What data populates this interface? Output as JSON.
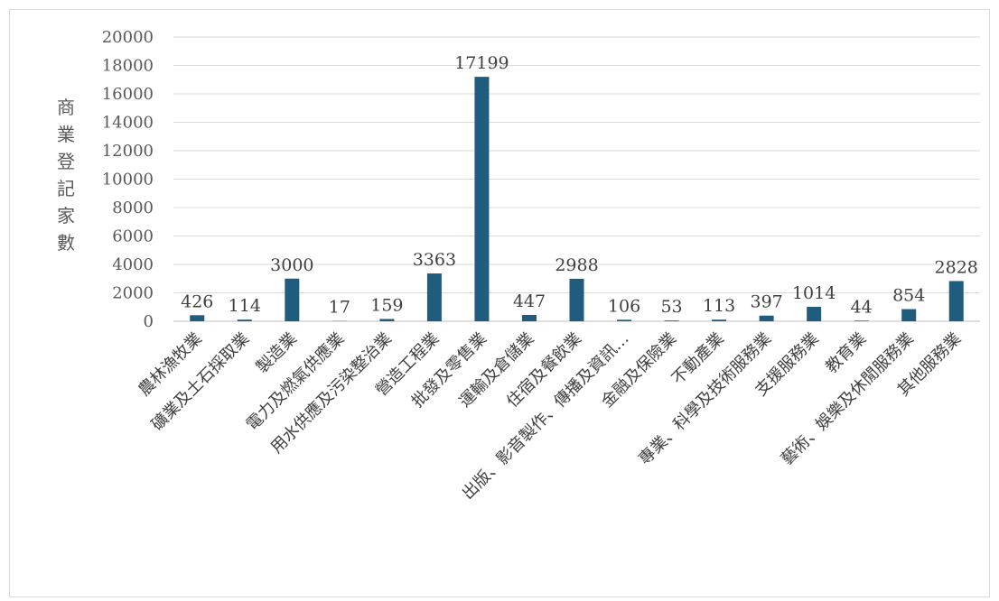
{
  "chart_data": {
    "type": "bar",
    "title": "",
    "xlabel": "",
    "ylabel": "商業登記家數",
    "ylim": [
      0,
      20000
    ],
    "yticks": [
      0,
      2000,
      4000,
      6000,
      8000,
      10000,
      12000,
      14000,
      16000,
      18000,
      20000
    ],
    "grid": true,
    "bar_color": "#1f5c7e",
    "categories": [
      "農林漁牧業",
      "礦業及土石採取業",
      "製造業",
      "電力及燃氣供應業",
      "用水供應及污染整治業",
      "營造工程業",
      "批發及零售業",
      "運輸及倉儲業",
      "住宿及餐飲業",
      "出版、影音製作、傳播及資訊…",
      "金融及保險業",
      "不動產業",
      "專業、科學及技術服務業",
      "支援服務業",
      "教育業",
      "藝術、娛樂及休閒服務業",
      "其他服務業"
    ],
    "values": [
      426,
      114,
      3000,
      17,
      159,
      3363,
      17199,
      447,
      2988,
      106,
      53,
      113,
      397,
      1014,
      44,
      854,
      2828
    ],
    "data_labels": [
      "426",
      "114",
      "3000",
      "17",
      "159",
      "3363",
      "17199",
      "447",
      "2988",
      "106",
      "53",
      "113",
      "397",
      "1014",
      "44",
      "854",
      "2828"
    ]
  }
}
